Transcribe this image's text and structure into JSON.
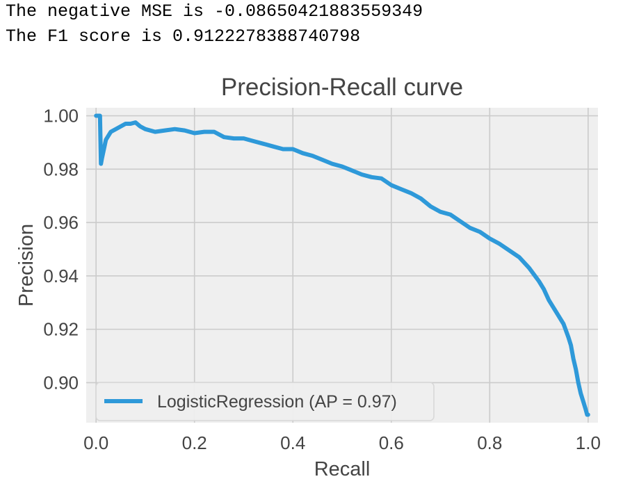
{
  "output": {
    "line1": "The negative MSE is -0.08650421883559349",
    "line2": "The F1 score is 0.9122278388740798"
  },
  "colors": {
    "figure_background": "#ffffff",
    "axes_background": "#efefef",
    "grid": "#cbcbcb",
    "series": "#2e99d9",
    "text": "#444444"
  },
  "chart_data": {
    "type": "line",
    "title": "Precision-Recall curve",
    "xlabel": "Recall",
    "ylabel": "Precision",
    "xlim": [
      -0.02,
      1.02
    ],
    "ylim": [
      0.885,
      1.003
    ],
    "xticks": [
      "0.0",
      "0.2",
      "0.4",
      "0.6",
      "0.8",
      "1.0"
    ],
    "yticks": [
      "0.90",
      "0.92",
      "0.94",
      "0.96",
      "0.98",
      "1.00"
    ],
    "grid": true,
    "legend_position": "lower-left",
    "series": [
      {
        "name": "LogisticRegression (AP = 0.97)",
        "x": [
          0.0,
          0.002,
          0.005,
          0.008,
          0.01,
          0.012,
          0.02,
          0.03,
          0.04,
          0.05,
          0.06,
          0.07,
          0.08,
          0.09,
          0.1,
          0.12,
          0.14,
          0.16,
          0.18,
          0.2,
          0.22,
          0.24,
          0.26,
          0.28,
          0.3,
          0.32,
          0.34,
          0.36,
          0.38,
          0.4,
          0.42,
          0.44,
          0.46,
          0.48,
          0.5,
          0.52,
          0.54,
          0.56,
          0.58,
          0.6,
          0.62,
          0.64,
          0.66,
          0.68,
          0.7,
          0.72,
          0.74,
          0.76,
          0.78,
          0.8,
          0.82,
          0.84,
          0.86,
          0.88,
          0.9,
          0.91,
          0.92,
          0.93,
          0.94,
          0.95,
          0.96,
          0.965,
          0.97,
          0.975,
          0.98,
          0.985,
          0.99,
          0.995,
          0.998,
          1.0
        ],
        "y": [
          1.0,
          1.0,
          1.0,
          1.0,
          0.982,
          0.984,
          0.991,
          0.994,
          0.995,
          0.996,
          0.997,
          0.997,
          0.9975,
          0.996,
          0.995,
          0.994,
          0.9945,
          0.995,
          0.9945,
          0.9935,
          0.994,
          0.994,
          0.992,
          0.9915,
          0.9915,
          0.9905,
          0.9895,
          0.9885,
          0.9875,
          0.9875,
          0.986,
          0.985,
          0.9835,
          0.982,
          0.981,
          0.9795,
          0.978,
          0.977,
          0.9765,
          0.974,
          0.9725,
          0.971,
          0.969,
          0.966,
          0.964,
          0.963,
          0.9605,
          0.958,
          0.9565,
          0.954,
          0.952,
          0.9495,
          0.947,
          0.943,
          0.938,
          0.935,
          0.931,
          0.928,
          0.925,
          0.922,
          0.917,
          0.914,
          0.909,
          0.905,
          0.9,
          0.896,
          0.893,
          0.89,
          0.888,
          0.888
        ]
      }
    ]
  }
}
